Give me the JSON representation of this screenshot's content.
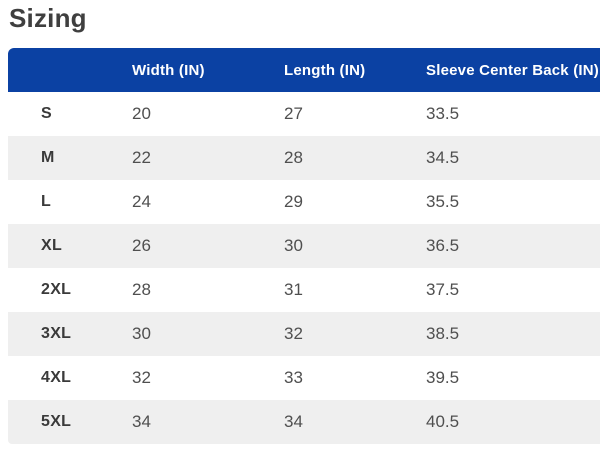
{
  "page": {
    "title": "Sizing"
  },
  "table": {
    "columns": {
      "size": "",
      "width": "Width (IN)",
      "length": "Length (IN)",
      "sleeve": "Sleeve Center Back (IN)"
    },
    "rows": [
      {
        "size": "S",
        "width": "20",
        "length": "27",
        "sleeve": "33.5"
      },
      {
        "size": "M",
        "width": "22",
        "length": "28",
        "sleeve": "34.5"
      },
      {
        "size": "L",
        "width": "24",
        "length": "29",
        "sleeve": "35.5"
      },
      {
        "size": "XL",
        "width": "26",
        "length": "30",
        "sleeve": "36.5"
      },
      {
        "size": "2XL",
        "width": "28",
        "length": "31",
        "sleeve": "37.5"
      },
      {
        "size": "3XL",
        "width": "30",
        "length": "32",
        "sleeve": "38.5"
      },
      {
        "size": "4XL",
        "width": "32",
        "length": "33",
        "sleeve": "39.5"
      },
      {
        "size": "5XL",
        "width": "34",
        "length": "34",
        "sleeve": "40.5"
      }
    ]
  },
  "colors": {
    "header_background": "#0b41a3",
    "header_text": "#ffffff",
    "stripe_row": "#efefef",
    "title_text": "#3f3f3f",
    "size_label_text": "#3a3a3a",
    "value_text": "#4f4f4f"
  }
}
